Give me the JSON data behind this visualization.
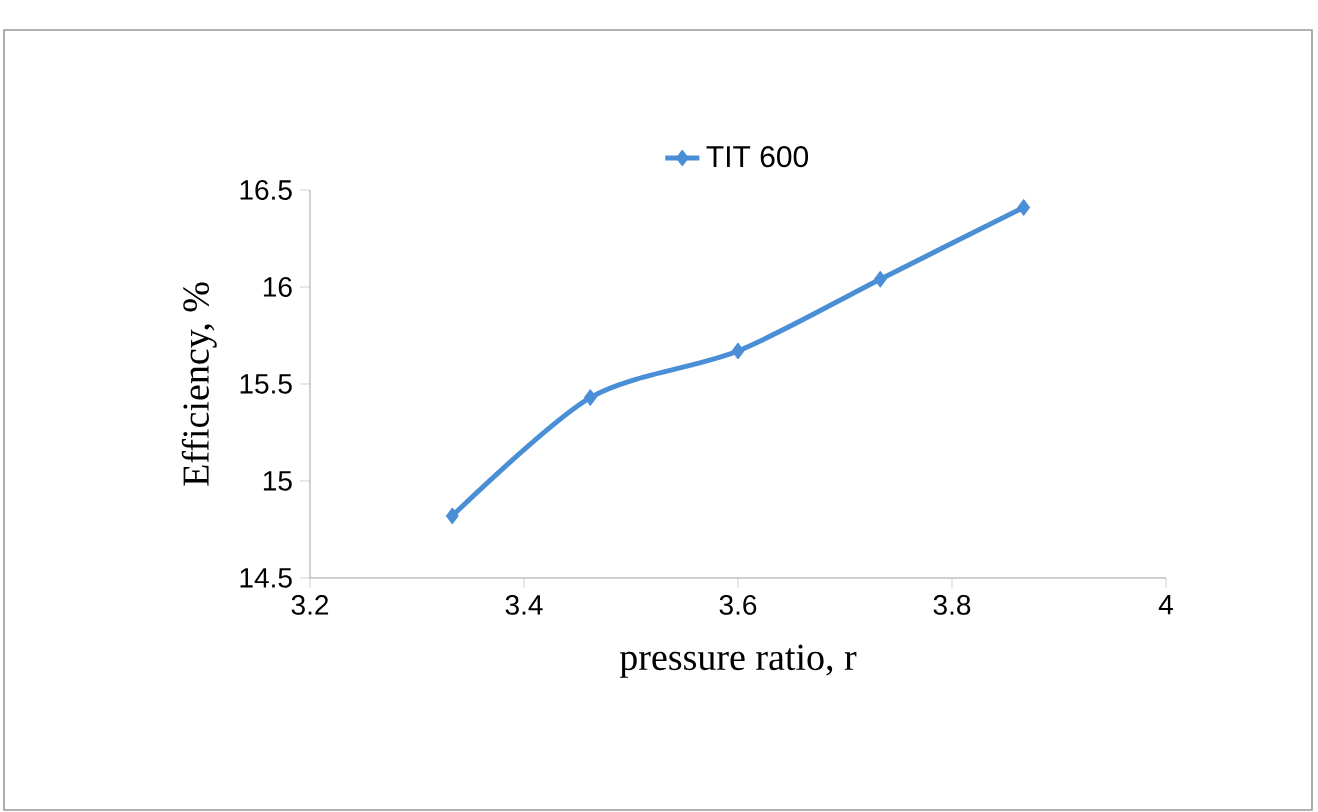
{
  "chart_data": {
    "type": "line",
    "xlabel": "pressure ratio, r",
    "ylabel": "Efficiency, %",
    "x": [
      3.333,
      3.462,
      3.6,
      3.733,
      3.867
    ],
    "series": [
      {
        "name": "TIT 600",
        "color": "#4a8fd6",
        "values": [
          14.82,
          15.43,
          15.67,
          16.04,
          16.41
        ]
      }
    ],
    "xlim": [
      3.2,
      4
    ],
    "xticks": [
      3.2,
      3.4,
      3.6,
      3.8,
      4
    ],
    "ylim": [
      14.5,
      16.5
    ],
    "yticks": [
      14.5,
      15,
      15.5,
      16,
      16.5
    ],
    "grid": false,
    "legend": "top",
    "marker": "diamond",
    "line_style": "solid"
  }
}
